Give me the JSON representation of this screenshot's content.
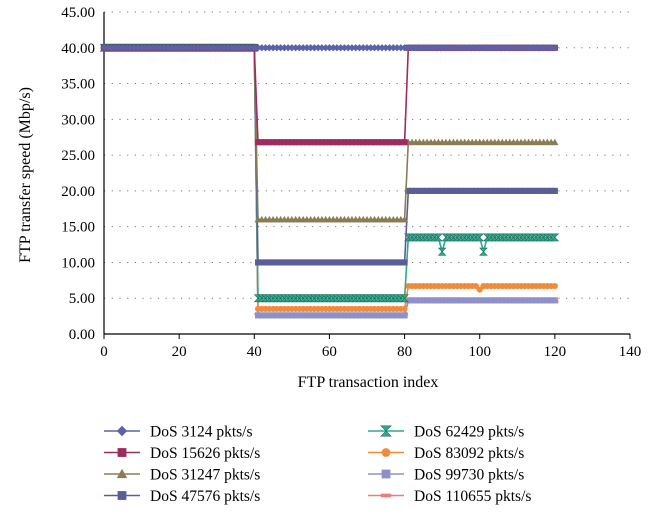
{
  "chart_data": {
    "type": "line",
    "title": "",
    "xlabel": "FTP transaction index",
    "ylabel": "FTP transfer speed (Mbp/s)",
    "xlim": [
      0,
      140
    ],
    "ylim": [
      0,
      45
    ],
    "xticks": [
      "0",
      "20",
      "40",
      "60",
      "80",
      "100",
      "120",
      "140"
    ],
    "yticks": [
      "0.00",
      "5.00",
      "10.00",
      "15.00",
      "20.00",
      "25.00",
      "30.00",
      "35.00",
      "40.00",
      "45.00"
    ],
    "grid": "dotted horizontal",
    "legend_position": "bottom, two columns",
    "segments": [
      {
        "x_start": 0,
        "x_end": 40
      },
      {
        "x_start": 41,
        "x_end": 80
      },
      {
        "x_start": 81,
        "x_end": 120
      }
    ],
    "series": [
      {
        "name": "DoS 3124 pkts/s",
        "color": "#5b63a8",
        "marker": "diamond",
        "values": [
          40.0,
          40.0,
          40.0
        ]
      },
      {
        "name": "DoS 15626 pkts/s",
        "color": "#9b2d5f",
        "marker": "square",
        "values": [
          40.0,
          26.8,
          40.0
        ]
      },
      {
        "name": "DoS 31247 pkts/s",
        "color": "#8a7d55",
        "marker": "triangle",
        "values": [
          40.0,
          16.0,
          26.8
        ]
      },
      {
        "name": "DoS 47576 pkts/s",
        "color": "#5a5e96",
        "marker": "square",
        "values": [
          40.0,
          10.0,
          20.0
        ]
      },
      {
        "name": "DoS 62429 pkts/s",
        "color": "#2fa88c",
        "marker": "hourglass",
        "values": [
          40.0,
          5.0,
          13.5
        ],
        "dips": [
          {
            "x": 90,
            "y": 11.5
          },
          {
            "x": 101,
            "y": 11.5
          }
        ]
      },
      {
        "name": "DoS 83092 pkts/s",
        "color": "#f08a3c",
        "marker": "circle",
        "values": [
          40.0,
          3.5,
          6.7
        ],
        "dips": [
          {
            "x": 100,
            "y": 6.2
          }
        ]
      },
      {
        "name": "DoS 99730 pkts/s",
        "color": "#9090c8",
        "marker": "square",
        "values": [
          40.0,
          2.6,
          4.7
        ]
      },
      {
        "name": "DoS 110655 pkts/s",
        "color": "#f07a7a",
        "marker": "dash",
        "values": [
          40.0,
          2.8,
          4.5
        ]
      }
    ]
  }
}
